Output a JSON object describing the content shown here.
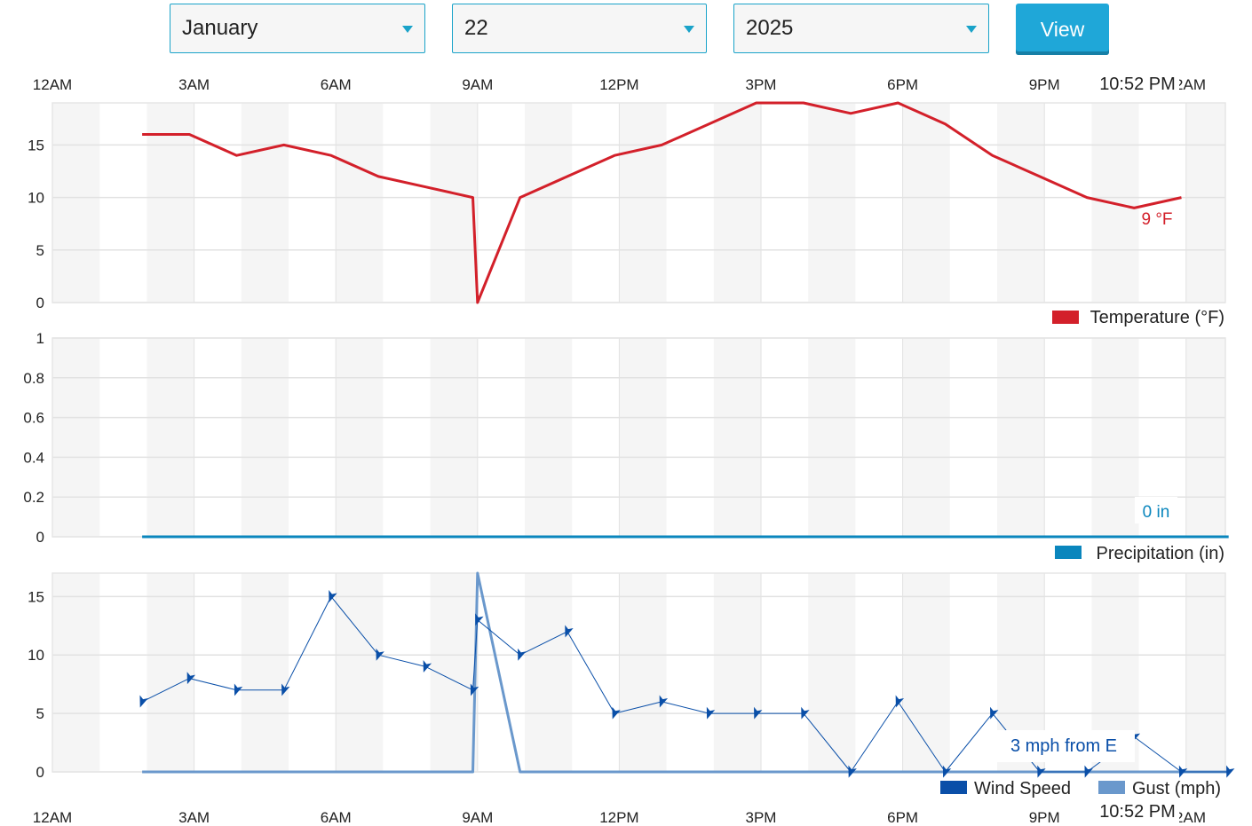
{
  "controls": {
    "month": "January",
    "day": "22",
    "year": "2025",
    "view_label": "View"
  },
  "cursor": {
    "time_label": "10:52 PM",
    "temp_label": "9 °F",
    "precip_label": "0 in",
    "wind_label": "3 mph from E"
  },
  "colors": {
    "temperature": "#d3202a",
    "precipitation": "#0a86bd",
    "wind": "#0a4fa8",
    "gust": "#6a98cc",
    "view_button": "#1fa7d8"
  },
  "chart_data": [
    {
      "type": "line",
      "x_ticks": [
        "12AM",
        "3AM",
        "6AM",
        "9AM",
        "12PM",
        "3PM",
        "6PM",
        "9PM",
        "12AM"
      ],
      "ylim": [
        0,
        19
      ],
      "y_ticks": [
        "0",
        "5",
        "10",
        "15"
      ],
      "series": [
        {
          "name": "Temperature (°F)",
          "x": [
            1.9,
            2.9,
            3.9,
            4.9,
            5.9,
            6.9,
            7.9,
            8.9,
            9.0,
            9.9,
            10.9,
            11.9,
            12.9,
            13.9,
            14.9,
            15.9,
            16.9,
            17.9,
            18.9,
            19.9,
            20.9,
            21.9,
            22.9,
            23.9
          ],
          "y": [
            16,
            16,
            14,
            15,
            14,
            12,
            11,
            10,
            0,
            10,
            12,
            14,
            15,
            17,
            19,
            19,
            18,
            19,
            17,
            14,
            12,
            10,
            9,
            10
          ]
        }
      ]
    },
    {
      "type": "line",
      "x_ticks": [
        "12AM",
        "3AM",
        "6AM",
        "9AM",
        "12PM",
        "3PM",
        "6PM",
        "9PM",
        "12AM"
      ],
      "ylim": [
        0,
        1
      ],
      "y_ticks": [
        "0",
        "0.2",
        "0.4",
        "0.6",
        "0.8",
        "1"
      ],
      "series": [
        {
          "name": "Precipitation (in)",
          "x": [
            1.9,
            24.9
          ],
          "y": [
            0,
            0
          ]
        }
      ]
    },
    {
      "type": "line",
      "x_ticks": [
        "12AM",
        "3AM",
        "6AM",
        "9AM",
        "12PM",
        "3PM",
        "6PM",
        "9PM",
        "12AM"
      ],
      "ylim": [
        0,
        17
      ],
      "y_ticks": [
        "0",
        "5",
        "10",
        "15"
      ],
      "series": [
        {
          "name": "Wind Speed",
          "x": [
            1.9,
            2.9,
            3.9,
            4.9,
            5.9,
            6.9,
            7.9,
            8.9,
            9.0,
            9.9,
            10.9,
            11.9,
            12.9,
            13.9,
            14.9,
            15.9,
            16.9,
            17.9,
            18.9,
            19.9,
            20.9,
            21.9,
            22.9,
            23.9,
            24.9
          ],
          "y": [
            6,
            8,
            7,
            7,
            15,
            10,
            9,
            7,
            13,
            10,
            12,
            5,
            6,
            5,
            5,
            5,
            0,
            6,
            0,
            5,
            0,
            0,
            3,
            0,
            0
          ]
        },
        {
          "name": "Gust (mph)",
          "x": [
            1.9,
            8.9,
            9.0,
            9.9,
            24.9
          ],
          "y": [
            0,
            0,
            17,
            0,
            0
          ]
        }
      ]
    }
  ]
}
